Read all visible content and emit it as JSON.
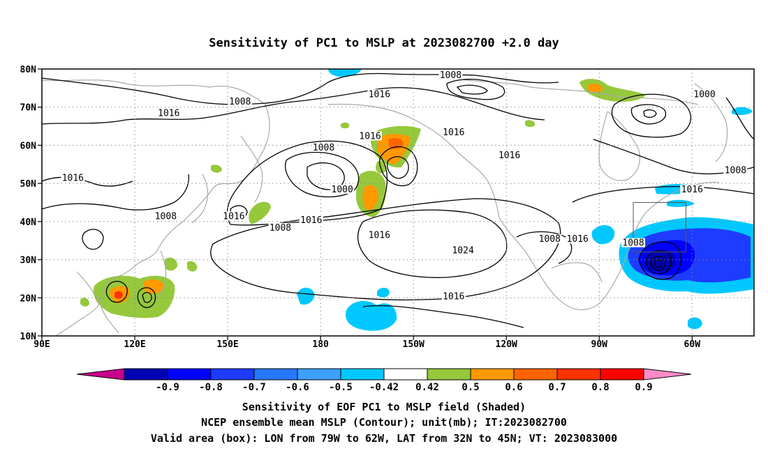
{
  "title": "Sensitivity of PC1 to MSLP at 2023082700 +2.0 day",
  "map": {
    "lat_labels": [
      "10N",
      "20N",
      "30N",
      "40N",
      "50N",
      "60N",
      "70N",
      "80N"
    ],
    "lon_labels": [
      "90E",
      "120E",
      "150E",
      "180",
      "150W",
      "120W",
      "90W",
      "60W"
    ],
    "lat_values": [
      10,
      20,
      30,
      40,
      50,
      60,
      70,
      80
    ],
    "lon_values": [
      90,
      120,
      150,
      180,
      210,
      240,
      270,
      300
    ],
    "extent": {
      "lon_min": 90,
      "lon_max": 320,
      "lat_min": 10,
      "lat_max": 80
    },
    "contour_interval_mb": 8,
    "contour_labels": [
      {
        "text": "1008",
        "lon": 130,
        "lat": 41
      },
      {
        "text": "1008",
        "lon": 154,
        "lat": 71
      },
      {
        "text": "1016",
        "lon": 131,
        "lat": 68
      },
      {
        "text": "1016",
        "lon": 100,
        "lat": 51
      },
      {
        "text": "1016",
        "lon": 152,
        "lat": 41
      },
      {
        "text": "1008",
        "lon": 167,
        "lat": 38
      },
      {
        "text": "1016",
        "lon": 177,
        "lat": 40
      },
      {
        "text": "1008",
        "lon": 181,
        "lat": 59
      },
      {
        "text": "1000",
        "lon": 187,
        "lat": 48
      },
      {
        "text": "1016",
        "lon": 196,
        "lat": 62
      },
      {
        "text": "1016",
        "lon": 199,
        "lat": 73
      },
      {
        "text": "1008",
        "lon": 222,
        "lat": 78
      },
      {
        "text": "1016",
        "lon": 223,
        "lat": 63
      },
      {
        "text": "1016",
        "lon": 241,
        "lat": 57
      },
      {
        "text": "1016",
        "lon": 199,
        "lat": 36
      },
      {
        "text": "1024",
        "lon": 226,
        "lat": 32
      },
      {
        "text": "1016",
        "lon": 223,
        "lat": 20
      },
      {
        "text": "1008",
        "lon": 254,
        "lat": 35
      },
      {
        "text": "1016",
        "lon": 263,
        "lat": 35
      },
      {
        "text": "1008",
        "lon": 281,
        "lat": 34
      },
      {
        "text": "1000",
        "lon": 304,
        "lat": 73
      },
      {
        "text": "1016",
        "lon": 300,
        "lat": 48
      },
      {
        "text": "1008",
        "lon": 314,
        "lat": 53
      }
    ],
    "valid_box": {
      "lon_min": 281,
      "lon_max": 298,
      "lat_min": 32,
      "lat_max": 45
    }
  },
  "colorbar": {
    "labels": [
      "-0.9",
      "-0.8",
      "-0.7",
      "-0.6",
      "-0.5",
      "-0.42",
      "0.42",
      "0.5",
      "0.6",
      "0.7",
      "0.8",
      "0.9"
    ],
    "colors": [
      "#c8008c",
      "#0000b4",
      "#0000ff",
      "#1e3cff",
      "#2878ff",
      "#3ca0ff",
      "#00c8ff",
      "#ffffff",
      "#96c83c",
      "#ff9900",
      "#ff6400",
      "#ff3200",
      "#ff0000",
      "#ff8cc8"
    ]
  },
  "captions": [
    "Sensitivity of EOF PC1 to MSLP field (Shaded)",
    "NCEP ensemble mean MSLP (Contour); unit(mb); IT:2023082700",
    "Valid area (box): LON from 79W to 62W, LAT from 32N to 45N; VT: 2023083000"
  ]
}
